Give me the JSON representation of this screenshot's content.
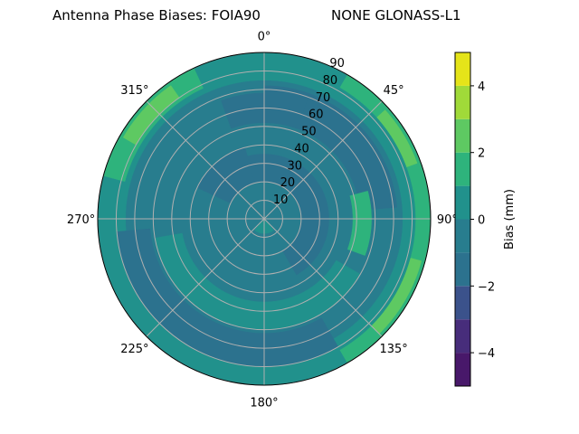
{
  "title_left": "Antenna Phase Biases: FOIA90",
  "title_right": "NONE GLONASS-L1",
  "chart_data": {
    "type": "contour",
    "projection": "polar",
    "theta_zero": "north",
    "theta_direction": "clockwise",
    "angular_ticks": [
      "0°",
      "45°",
      "90°",
      "135°",
      "180°",
      "225°",
      "270°",
      "315°"
    ],
    "angular_tick_values": [
      0,
      45,
      90,
      135,
      180,
      225,
      270,
      315
    ],
    "radial_ticks": [
      "10",
      "20",
      "30",
      "40",
      "50",
      "60",
      "70",
      "80",
      "90"
    ],
    "radial_tick_values": [
      10,
      20,
      30,
      40,
      50,
      60,
      70,
      80,
      90
    ],
    "rlim": [
      0,
      90
    ],
    "grid": true,
    "colormap": "viridis",
    "levels": [
      -5,
      -4,
      -3,
      -2,
      -1,
      0,
      1,
      2,
      3,
      4,
      5
    ],
    "level_colors": [
      "#48186a",
      "#472d7b",
      "#3b528b",
      "#2c728e",
      "#287d8e",
      "#21918c",
      "#2eb37c",
      "#5ec962",
      "#a0da39",
      "#e5e419"
    ],
    "colorbar": {
      "label": "Bias (mm)",
      "ticks": [
        "−4",
        "−2",
        "0",
        "2",
        "4"
      ],
      "tick_values": [
        -4,
        -2,
        0,
        2,
        4
      ],
      "range": [
        -5,
        5
      ]
    },
    "regions_approx": [
      {
        "azimuth": [
          0,
          360
        ],
        "zenith": [
          0,
          90
        ],
        "level": [
          -1,
          0
        ]
      },
      {
        "azimuth": [
          0,
          360
        ],
        "zenith": [
          75,
          90
        ],
        "level": [
          0,
          1
        ]
      },
      {
        "azimuth": [
          120,
          260
        ],
        "zenith": [
          45,
          60
        ],
        "level": [
          0,
          1
        ]
      },
      {
        "azimuth": [
          295,
          345
        ],
        "zenith": [
          20,
          40
        ],
        "level": [
          -2,
          -1
        ]
      },
      {
        "azimuth": [
          345,
          150
        ],
        "zenith": [
          20,
          35
        ],
        "level": [
          -2,
          -1
        ]
      },
      {
        "azimuth": [
          0,
          85
        ],
        "zenith": [
          52,
          72
        ],
        "level": [
          -2,
          -1
        ]
      },
      {
        "azimuth": [
          340,
          20
        ],
        "zenith": [
          52,
          68
        ],
        "level": [
          -2,
          -1
        ]
      },
      {
        "azimuth": [
          150,
          265
        ],
        "zenith": [
          62,
          80
        ],
        "level": [
          -2,
          -1
        ]
      },
      {
        "azimuth": [
          75,
          110
        ],
        "zenith": [
          48,
          58
        ],
        "level": [
          1,
          2
        ]
      },
      {
        "azimuth": [
          30,
          150
        ],
        "zenith": [
          82,
          90
        ],
        "level": [
          1,
          2
        ]
      },
      {
        "azimuth": [
          285,
          335
        ],
        "zenith": [
          78,
          90
        ],
        "level": [
          1,
          2
        ]
      },
      {
        "azimuth": [
          300,
          325
        ],
        "zenith": [
          80,
          88
        ],
        "level": [
          2,
          3
        ]
      },
      {
        "azimuth": [
          48,
          70
        ],
        "zenith": [
          82,
          88
        ],
        "level": [
          2,
          3
        ]
      },
      {
        "azimuth": [
          105,
          135
        ],
        "zenith": [
          82,
          88
        ],
        "level": [
          2,
          3
        ]
      },
      {
        "azimuth": [
          140,
          220
        ],
        "zenith": [
          0,
          8
        ],
        "level": [
          0,
          1
        ]
      }
    ]
  }
}
